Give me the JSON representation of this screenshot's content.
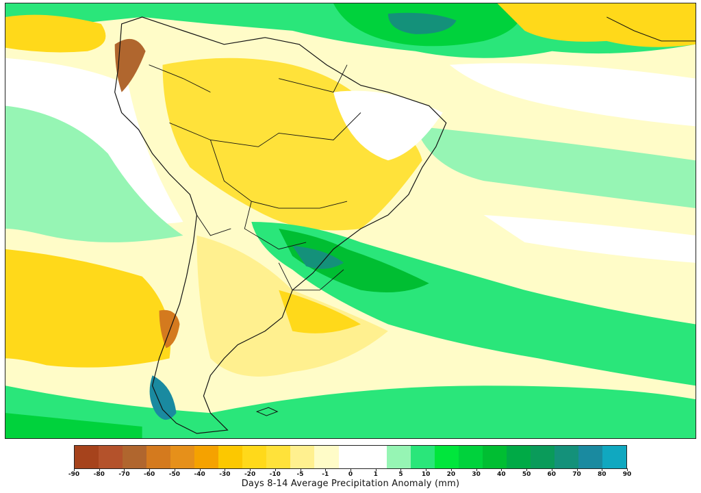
{
  "map": {
    "region": "South America",
    "projection_box_lon": [
      -110,
      -10
    ],
    "projection_box_lat": [
      -60,
      15
    ],
    "colors": {
      "-90": "#a6431c",
      "-80": "#b4522b",
      "-70": "#b0662e",
      "-60": "#d47a1e",
      "-50": "#e6901a",
      "-40": "#f5a200",
      "-30": "#fcc800",
      "-20": "#ffd91a",
      "-10": "#ffe23a",
      "-5": "#fff08f",
      "-1": "#fffcc8",
      "0": "#ffffff",
      "1": "#96f5b4",
      "5": "#2ae67a",
      "10": "#00e63c",
      "20": "#00d23c",
      "30": "#00be32",
      "40": "#00aa46",
      "50": "#0a9b5a",
      "60": "#14917a",
      "70": "#1a8aa0",
      "80": "#1596a8",
      "90": "#10a8c0"
    }
  },
  "colorbar": {
    "title": "Days 8-14 Average Precipitation Anomaly (mm)",
    "bin_colors": [
      "#a6431c",
      "#b4522b",
      "#b0662e",
      "#d47a1e",
      "#e6901a",
      "#f5a200",
      "#fcc800",
      "#ffd91a",
      "#ffe23a",
      "#fff08f",
      "#fffcc8",
      "#ffffff",
      "#ffffff",
      "#96f5b4",
      "#2ae67a",
      "#00e63c",
      "#00d23c",
      "#00be32",
      "#00aa46",
      "#0a9b5a",
      "#14917a",
      "#1a8aa0",
      "#10a8c0"
    ],
    "tick_labels": [
      "-90",
      "-80",
      "-70",
      "-60",
      "-50",
      "-40",
      "-30",
      "-20",
      "-10",
      "-5",
      "-1",
      "0",
      "1",
      "5",
      "10",
      "20",
      "30",
      "40",
      "50",
      "60",
      "70",
      "80",
      "90"
    ]
  }
}
